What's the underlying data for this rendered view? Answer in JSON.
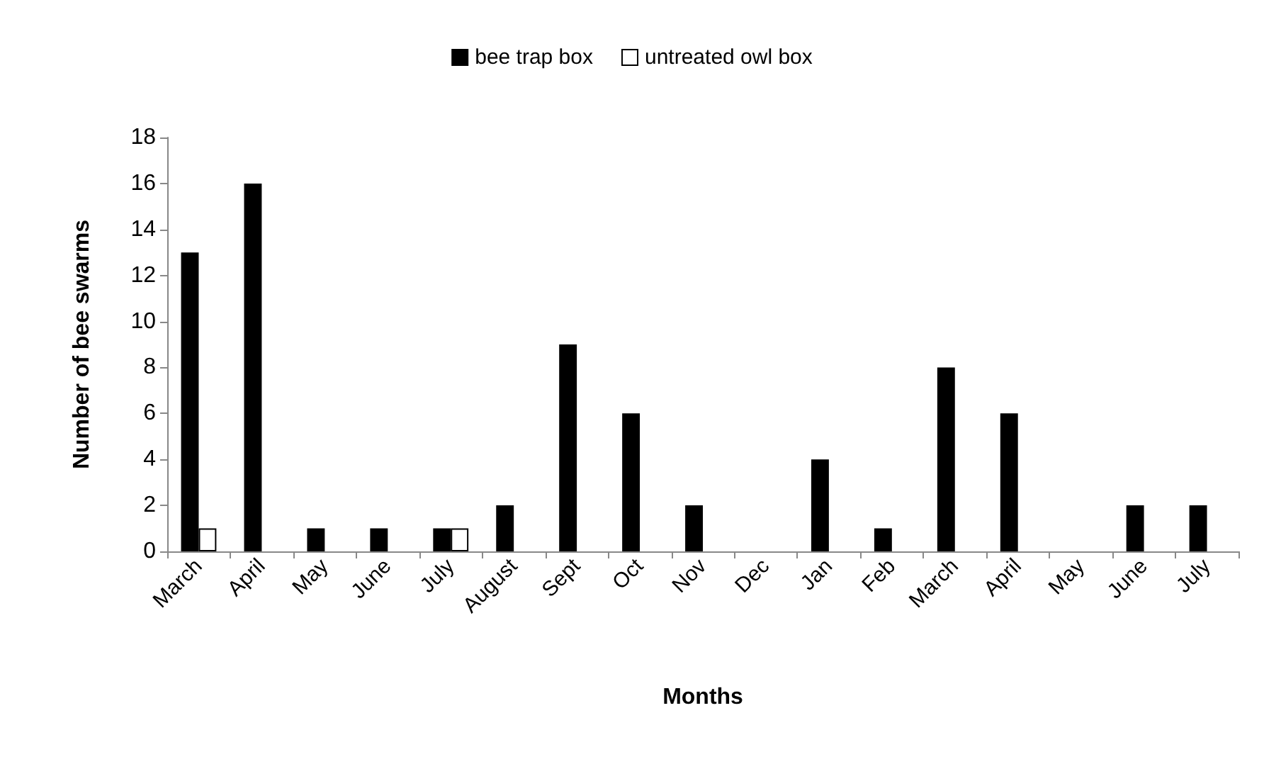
{
  "chart_data": {
    "type": "bar",
    "xlabel": "Months",
    "ylabel": "Number of bee swarms",
    "categories": [
      "March",
      "April",
      "May",
      "June",
      "July",
      "August",
      "Sept",
      "Oct",
      "Nov",
      "Dec",
      "Jan",
      "Feb",
      "March",
      "April",
      "May",
      "June",
      "July"
    ],
    "series": [
      {
        "name": "bee trap box",
        "color": "#000000",
        "values": [
          13,
          16,
          1,
          1,
          1,
          2,
          9,
          6,
          2,
          0,
          4,
          1,
          8,
          6,
          0,
          2,
          2
        ]
      },
      {
        "name": "untreated owl box",
        "color": "#ffffff",
        "values": [
          1,
          0,
          0,
          0,
          1,
          0,
          0,
          0,
          0,
          0,
          0,
          0,
          0,
          0,
          0,
          0,
          0
        ]
      }
    ],
    "ylim": [
      0,
      18
    ],
    "yticks": [
      0,
      2,
      4,
      6,
      8,
      10,
      12,
      14,
      16,
      18
    ],
    "grid": false,
    "legend": "top"
  }
}
